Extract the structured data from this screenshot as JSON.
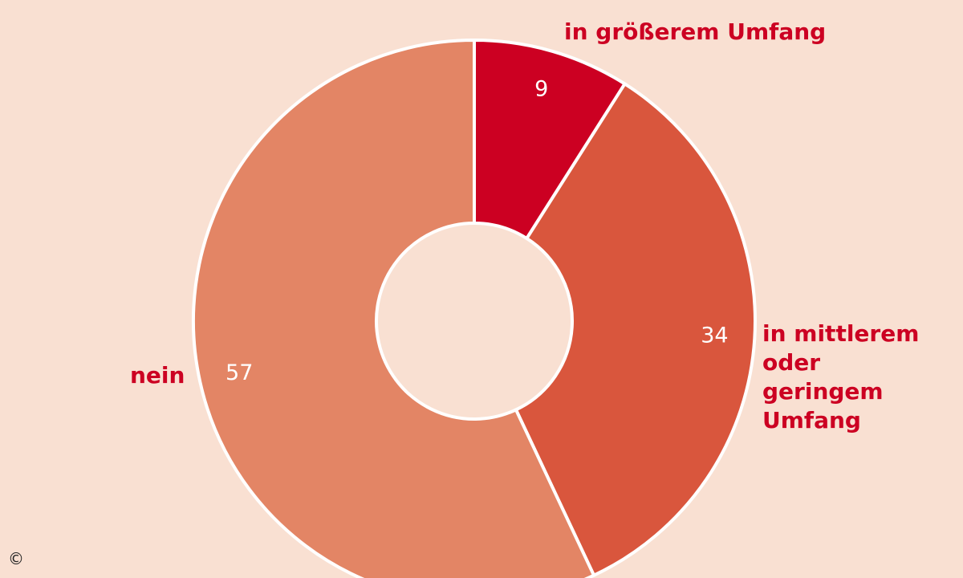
{
  "chart_data": {
    "type": "pie",
    "categories": [
      "in größerem Umfang",
      "in mittlerem oder geringem Umfang",
      "nein"
    ],
    "values": [
      9,
      34,
      57
    ],
    "colors": [
      "#cc0022",
      "#d9563d",
      "#e38565"
    ]
  },
  "footer": "©"
}
